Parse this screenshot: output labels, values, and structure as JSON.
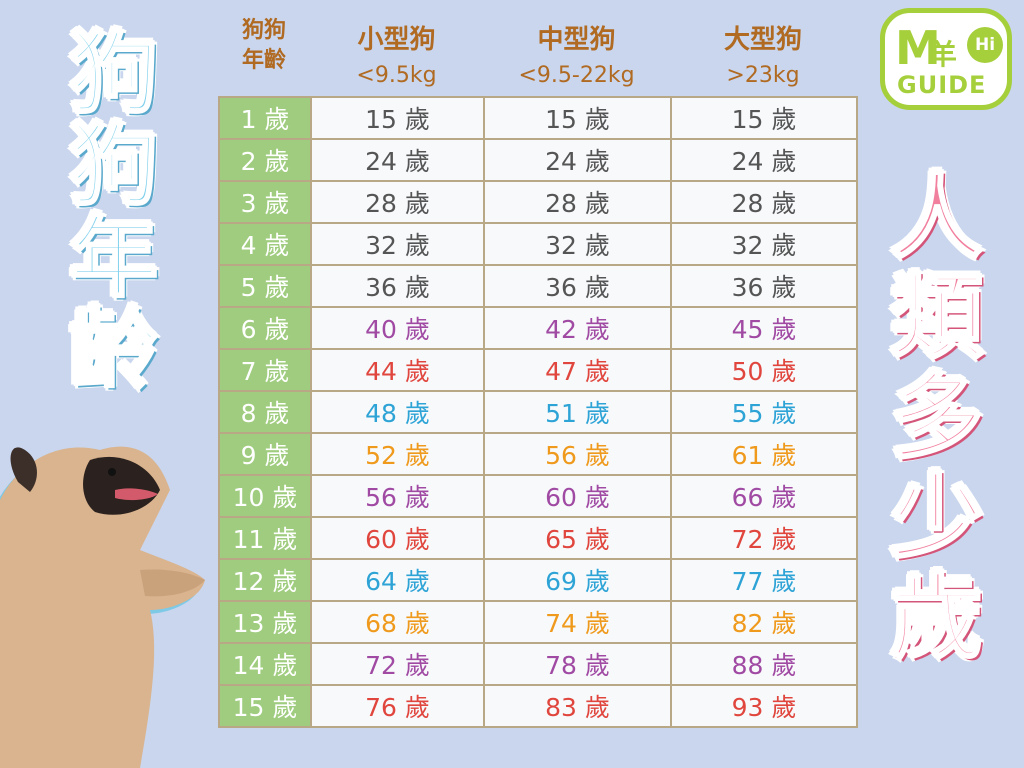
{
  "left_title": [
    "狗",
    "狗",
    "年",
    "齡"
  ],
  "right_title": [
    "人",
    "類",
    "多",
    "少",
    "歲"
  ],
  "logo": {
    "m": "M",
    "cjk": "羊",
    "hi": "Hi",
    "guide": "GUIDE"
  },
  "header": {
    "corner": [
      "狗狗",
      "年齡"
    ],
    "columns": [
      {
        "name": "小型狗",
        "range": "<9.5kg"
      },
      {
        "name": "中型狗",
        "range": "<9.5-22kg"
      },
      {
        "name": "大型狗",
        "range": ">23kg"
      }
    ]
  },
  "colors": {
    "gray": "#555555",
    "purple": "#a04aa3",
    "red": "#e0463d",
    "blue": "#2ea3d6",
    "orange": "#ef9a1c"
  },
  "rows": [
    {
      "age": "1 歲",
      "color": "gray",
      "values": [
        "15 歲",
        "15 歲",
        "15 歲"
      ]
    },
    {
      "age": "2 歲",
      "color": "gray",
      "values": [
        "24 歲",
        "24 歲",
        "24 歲"
      ]
    },
    {
      "age": "3 歲",
      "color": "gray",
      "values": [
        "28 歲",
        "28 歲",
        "28 歲"
      ]
    },
    {
      "age": "4 歲",
      "color": "gray",
      "values": [
        "32 歲",
        "32 歲",
        "32 歲"
      ]
    },
    {
      "age": "5 歲",
      "color": "gray",
      "values": [
        "36 歲",
        "36 歲",
        "36 歲"
      ]
    },
    {
      "age": "6 歲",
      "color": "purple",
      "values": [
        "40 歲",
        "42 歲",
        "45 歲"
      ]
    },
    {
      "age": "7 歲",
      "color": "red",
      "values": [
        "44 歲",
        "47 歲",
        "50 歲"
      ]
    },
    {
      "age": "8 歲",
      "color": "blue",
      "values": [
        "48 歲",
        "51 歲",
        "55 歲"
      ]
    },
    {
      "age": "9 歲",
      "color": "orange",
      "values": [
        "52 歲",
        "56 歲",
        "61 歲"
      ]
    },
    {
      "age": "10 歲",
      "color": "purple",
      "values": [
        "56 歲",
        "60 歲",
        "66 歲"
      ]
    },
    {
      "age": "11 歲",
      "color": "red",
      "values": [
        "60 歲",
        "65 歲",
        "72 歲"
      ]
    },
    {
      "age": "12 歲",
      "color": "blue",
      "values": [
        "64 歲",
        "69 歲",
        "77 歲"
      ]
    },
    {
      "age": "13 歲",
      "color": "orange",
      "values": [
        "68 歲",
        "74 歲",
        "82 歲"
      ]
    },
    {
      "age": "14 歲",
      "color": "purple",
      "values": [
        "72 歲",
        "78 歲",
        "88 歲"
      ]
    },
    {
      "age": "15 歲",
      "color": "red",
      "values": [
        "76 歲",
        "83 歲",
        "93 歲"
      ]
    }
  ]
}
